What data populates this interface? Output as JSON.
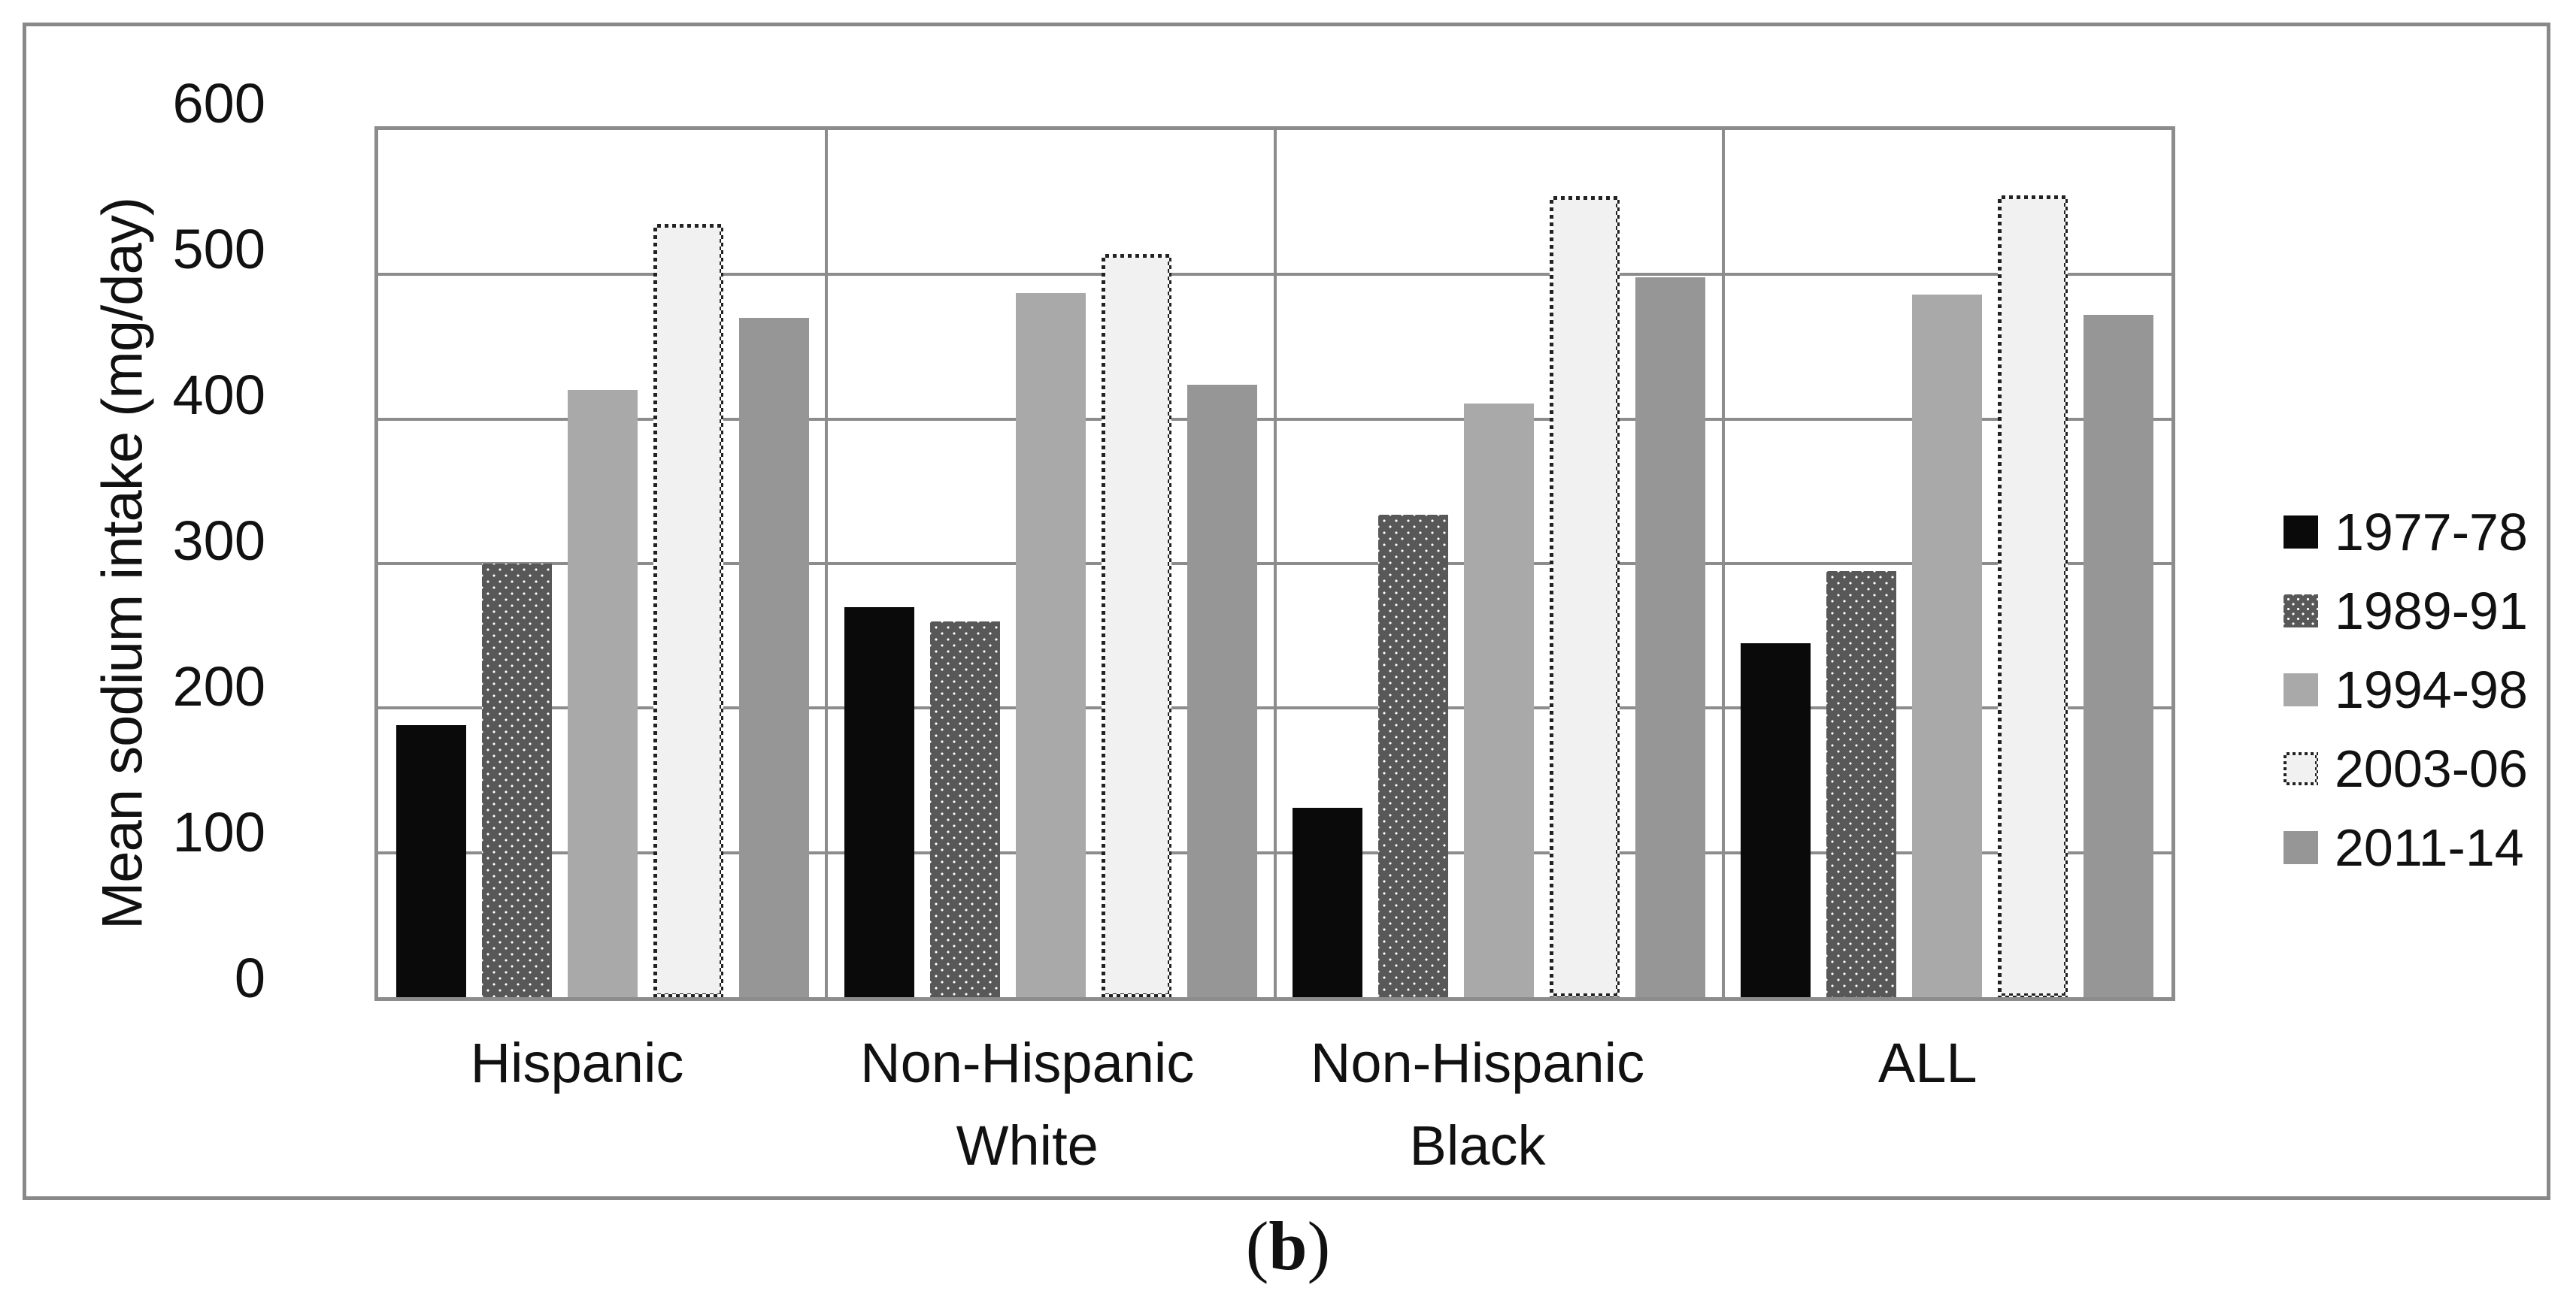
{
  "figure": {
    "caption_prefix": "(",
    "caption_letter": "b",
    "caption_suffix": ")"
  },
  "chart_data": {
    "type": "bar",
    "title": "",
    "xlabel": "",
    "ylabel": "Mean sodium intake (mg/day)",
    "ylim": [
      0,
      600
    ],
    "ytick_interval": 100,
    "yticks": [
      0,
      100,
      200,
      300,
      400,
      500,
      600
    ],
    "grid": true,
    "legend_position": "right",
    "categories": [
      "Hispanic",
      "Non-Hispanic White",
      "Non-Hispanic Black",
      "ALL"
    ],
    "category_label_lines": [
      [
        "Hispanic"
      ],
      [
        "Non-Hispanic",
        "White"
      ],
      [
        "Non-Hispanic",
        "Black"
      ],
      [
        "ALL"
      ]
    ],
    "series": [
      {
        "name": "1977-78",
        "style": "solid-black",
        "color": "#0a0a0a",
        "values": [
          188,
          270,
          131,
          245
        ]
      },
      {
        "name": "1989-91",
        "style": "dotted-dark",
        "color": "#585858",
        "values": [
          300,
          260,
          334,
          295
        ]
      },
      {
        "name": "1994-98",
        "style": "solid-lightgray",
        "color": "#a9a9a9",
        "values": [
          420,
          487,
          411,
          486
        ]
      },
      {
        "name": "2003-06",
        "style": "pattern-border-white",
        "color": "#f1f1f1",
        "values": [
          535,
          514,
          554,
          555
        ]
      },
      {
        "name": "2011-14",
        "style": "solid-gray",
        "color": "#969696",
        "values": [
          470,
          424,
          498,
          472
        ]
      }
    ],
    "axis_colors": {
      "gridline": "#8c8c8c",
      "plot_border": "#8c8c8c",
      "figure_border": "#898989"
    }
  }
}
